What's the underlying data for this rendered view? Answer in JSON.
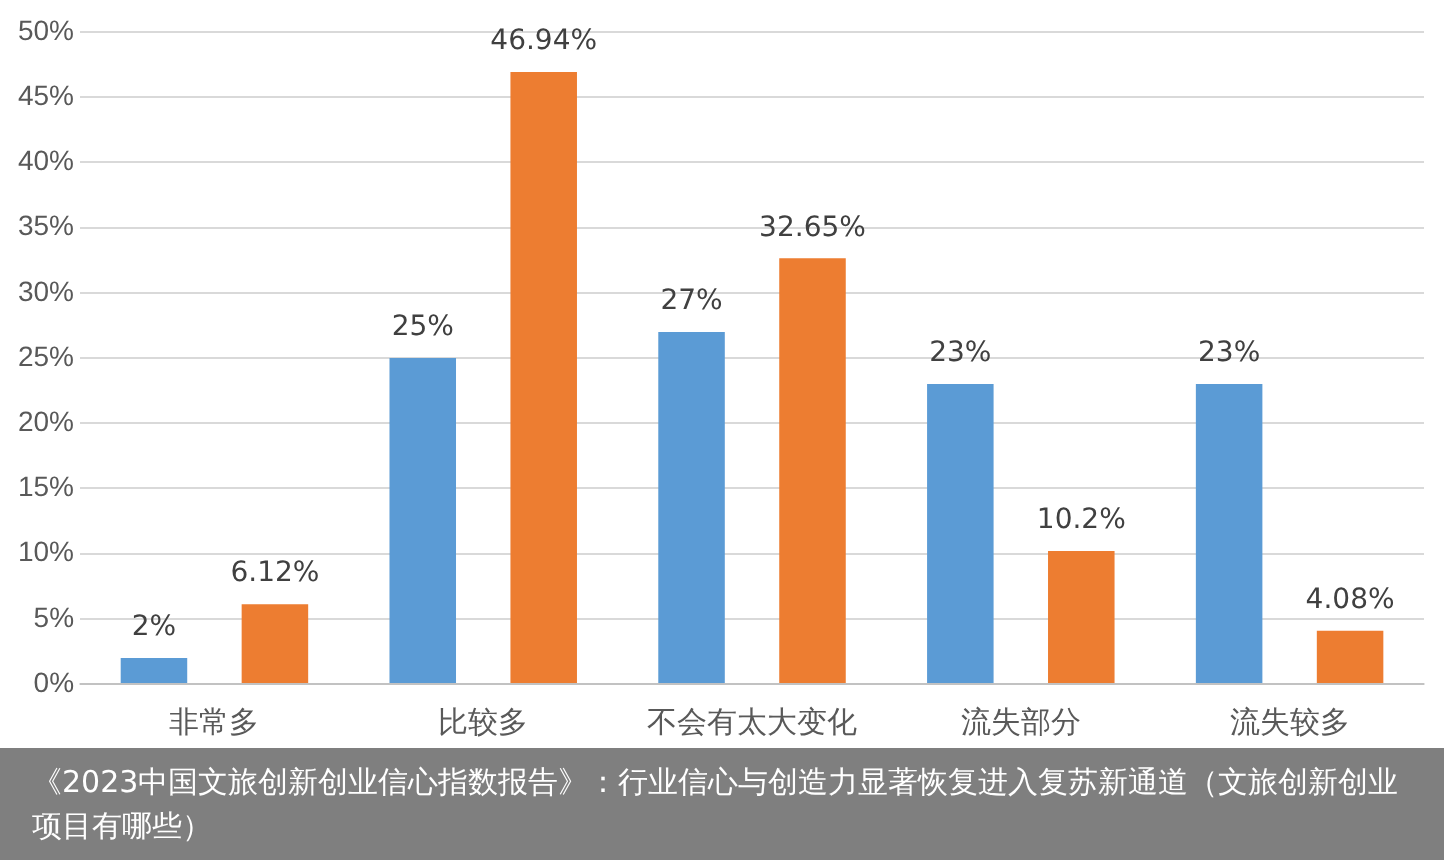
{
  "chart_data": {
    "type": "bar",
    "categories": [
      "非常多",
      "比较多",
      "不会有太大变化",
      "流失部分",
      "流失较多"
    ],
    "series": [
      {
        "color": "#5b9bd5",
        "values": [
          2,
          25,
          27,
          23,
          23
        ],
        "value_labels": [
          "2%",
          "25%",
          "27%",
          "23%",
          "23%"
        ]
      },
      {
        "color": "#ed7d31",
        "values": [
          6.12,
          46.94,
          32.65,
          10.2,
          4.08
        ],
        "value_labels": [
          "6.12%",
          "46.94%",
          "32.65%",
          "10.2%",
          "4.08%"
        ]
      }
    ],
    "ylim": [
      0,
      50
    ],
    "yticks": [
      {
        "value": 0,
        "label": "0%"
      },
      {
        "value": 5,
        "label": "5%"
      },
      {
        "value": 10,
        "label": "10%"
      },
      {
        "value": 15,
        "label": "15%"
      },
      {
        "value": 20,
        "label": "20%"
      },
      {
        "value": 25,
        "label": "25%"
      },
      {
        "value": 30,
        "label": "30%"
      },
      {
        "value": 35,
        "label": "35%"
      },
      {
        "value": 40,
        "label": "40%"
      },
      {
        "value": 45,
        "label": "45%"
      },
      {
        "value": 50,
        "label": "50%"
      }
    ],
    "grid": "y",
    "legend": false,
    "annotations": [
      "《2023中国文旅创新创业信心指数报告》：行业信心与创造力显著恢复进入复苏新通道（文旅创新创业项目有哪些）"
    ]
  }
}
